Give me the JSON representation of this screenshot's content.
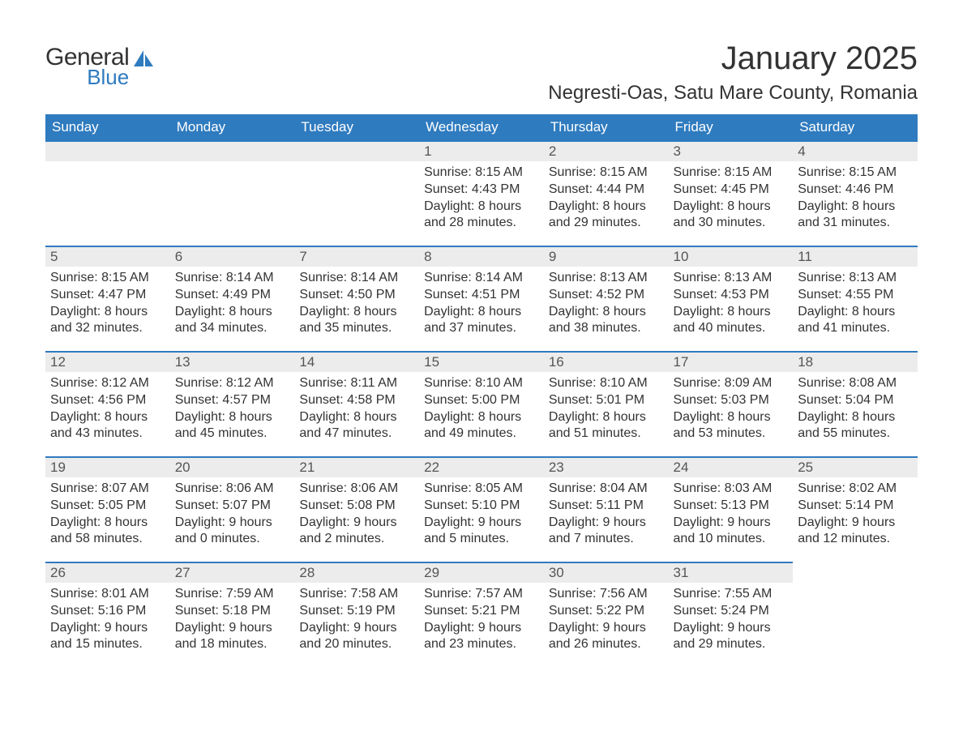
{
  "brand": {
    "word1": "General",
    "word2": "Blue",
    "word1_color": "#333333",
    "word2_color": "#2f7bbf",
    "icon_color": "#2f7bbf"
  },
  "title": "January 2025",
  "location": "Negresti-Oas, Satu Mare County, Romania",
  "colors": {
    "header_bg": "#2f7bbf",
    "header_text": "#ffffff",
    "daynum_bg": "#ececec",
    "daynum_border": "#2f7bbf",
    "text": "#333333"
  },
  "weekdays": [
    "Sunday",
    "Monday",
    "Tuesday",
    "Wednesday",
    "Thursday",
    "Friday",
    "Saturday"
  ],
  "labels": {
    "sunrise": "Sunrise:",
    "sunset": "Sunset:",
    "daylight": "Daylight:"
  },
  "weeks": [
    [
      null,
      null,
      null,
      {
        "n": "1",
        "sunrise": "8:15 AM",
        "sunset": "4:43 PM",
        "daylight": "8 hours and 28 minutes."
      },
      {
        "n": "2",
        "sunrise": "8:15 AM",
        "sunset": "4:44 PM",
        "daylight": "8 hours and 29 minutes."
      },
      {
        "n": "3",
        "sunrise": "8:15 AM",
        "sunset": "4:45 PM",
        "daylight": "8 hours and 30 minutes."
      },
      {
        "n": "4",
        "sunrise": "8:15 AM",
        "sunset": "4:46 PM",
        "daylight": "8 hours and 31 minutes."
      }
    ],
    [
      {
        "n": "5",
        "sunrise": "8:15 AM",
        "sunset": "4:47 PM",
        "daylight": "8 hours and 32 minutes."
      },
      {
        "n": "6",
        "sunrise": "8:14 AM",
        "sunset": "4:49 PM",
        "daylight": "8 hours and 34 minutes."
      },
      {
        "n": "7",
        "sunrise": "8:14 AM",
        "sunset": "4:50 PM",
        "daylight": "8 hours and 35 minutes."
      },
      {
        "n": "8",
        "sunrise": "8:14 AM",
        "sunset": "4:51 PM",
        "daylight": "8 hours and 37 minutes."
      },
      {
        "n": "9",
        "sunrise": "8:13 AM",
        "sunset": "4:52 PM",
        "daylight": "8 hours and 38 minutes."
      },
      {
        "n": "10",
        "sunrise": "8:13 AM",
        "sunset": "4:53 PM",
        "daylight": "8 hours and 40 minutes."
      },
      {
        "n": "11",
        "sunrise": "8:13 AM",
        "sunset": "4:55 PM",
        "daylight": "8 hours and 41 minutes."
      }
    ],
    [
      {
        "n": "12",
        "sunrise": "8:12 AM",
        "sunset": "4:56 PM",
        "daylight": "8 hours and 43 minutes."
      },
      {
        "n": "13",
        "sunrise": "8:12 AM",
        "sunset": "4:57 PM",
        "daylight": "8 hours and 45 minutes."
      },
      {
        "n": "14",
        "sunrise": "8:11 AM",
        "sunset": "4:58 PM",
        "daylight": "8 hours and 47 minutes."
      },
      {
        "n": "15",
        "sunrise": "8:10 AM",
        "sunset": "5:00 PM",
        "daylight": "8 hours and 49 minutes."
      },
      {
        "n": "16",
        "sunrise": "8:10 AM",
        "sunset": "5:01 PM",
        "daylight": "8 hours and 51 minutes."
      },
      {
        "n": "17",
        "sunrise": "8:09 AM",
        "sunset": "5:03 PM",
        "daylight": "8 hours and 53 minutes."
      },
      {
        "n": "18",
        "sunrise": "8:08 AM",
        "sunset": "5:04 PM",
        "daylight": "8 hours and 55 minutes."
      }
    ],
    [
      {
        "n": "19",
        "sunrise": "8:07 AM",
        "sunset": "5:05 PM",
        "daylight": "8 hours and 58 minutes."
      },
      {
        "n": "20",
        "sunrise": "8:06 AM",
        "sunset": "5:07 PM",
        "daylight": "9 hours and 0 minutes."
      },
      {
        "n": "21",
        "sunrise": "8:06 AM",
        "sunset": "5:08 PM",
        "daylight": "9 hours and 2 minutes."
      },
      {
        "n": "22",
        "sunrise": "8:05 AM",
        "sunset": "5:10 PM",
        "daylight": "9 hours and 5 minutes."
      },
      {
        "n": "23",
        "sunrise": "8:04 AM",
        "sunset": "5:11 PM",
        "daylight": "9 hours and 7 minutes."
      },
      {
        "n": "24",
        "sunrise": "8:03 AM",
        "sunset": "5:13 PM",
        "daylight": "9 hours and 10 minutes."
      },
      {
        "n": "25",
        "sunrise": "8:02 AM",
        "sunset": "5:14 PM",
        "daylight": "9 hours and 12 minutes."
      }
    ],
    [
      {
        "n": "26",
        "sunrise": "8:01 AM",
        "sunset": "5:16 PM",
        "daylight": "9 hours and 15 minutes."
      },
      {
        "n": "27",
        "sunrise": "7:59 AM",
        "sunset": "5:18 PM",
        "daylight": "9 hours and 18 minutes."
      },
      {
        "n": "28",
        "sunrise": "7:58 AM",
        "sunset": "5:19 PM",
        "daylight": "9 hours and 20 minutes."
      },
      {
        "n": "29",
        "sunrise": "7:57 AM",
        "sunset": "5:21 PM",
        "daylight": "9 hours and 23 minutes."
      },
      {
        "n": "30",
        "sunrise": "7:56 AM",
        "sunset": "5:22 PM",
        "daylight": "9 hours and 26 minutes."
      },
      {
        "n": "31",
        "sunrise": "7:55 AM",
        "sunset": "5:24 PM",
        "daylight": "9 hours and 29 minutes."
      },
      null
    ]
  ]
}
